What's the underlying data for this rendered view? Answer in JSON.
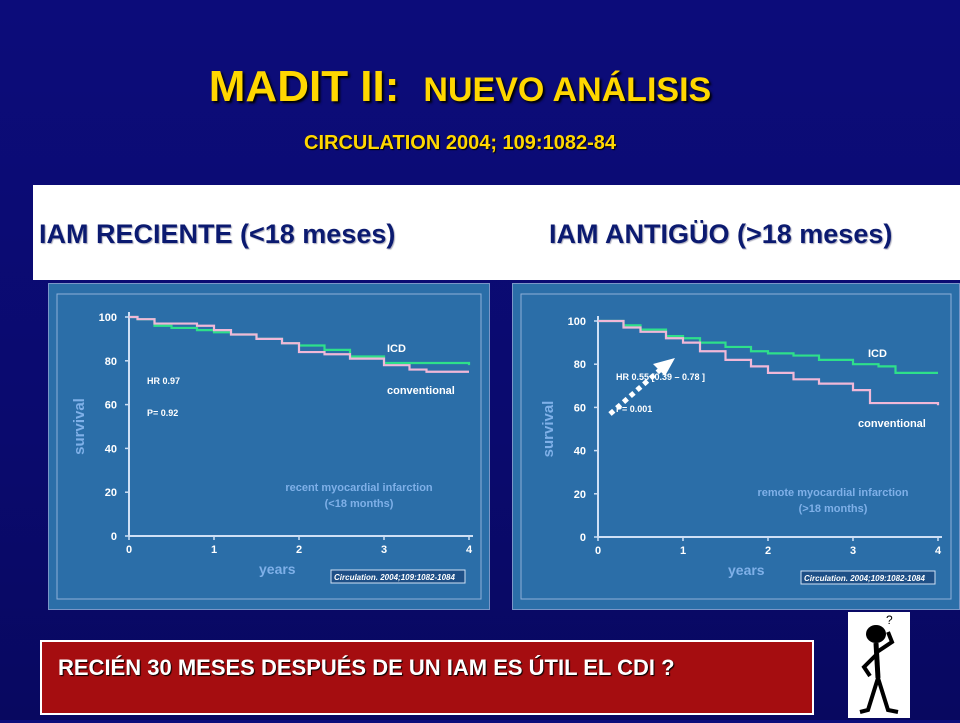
{
  "header": {
    "title_main": "MADIT II:",
    "title_sub": "NUEVO ANÁLISIS",
    "citation": "CIRCULATION 2004; 109:1082-84"
  },
  "band": {
    "left_label": "IAM RECIENTE (<18 meses)",
    "right_label": "IAM ANTIGÜO (>18 meses)"
  },
  "colors": {
    "icd": "#2ee08a",
    "conventional": "#f0b8d8",
    "plot_bg": "#2b6ea8",
    "label_blue": "#0b2ea0",
    "label_red": "#b01010"
  },
  "chart_data": [
    {
      "type": "line",
      "xlabel": "years",
      "ylabel": "survival",
      "xlim": [
        0,
        4
      ],
      "ylim": [
        0,
        100
      ],
      "x_ticks": [
        "0",
        "1",
        "2",
        "3",
        "4"
      ],
      "y_ticks": [
        "0",
        "20",
        "40",
        "60",
        "80",
        "100"
      ],
      "series": [
        {
          "name": "ICD",
          "x": [
            0,
            0.1,
            0.3,
            0.5,
            0.8,
            1.0,
            1.2,
            1.5,
            1.8,
            2.0,
            2.3,
            2.6,
            3.0,
            3.3,
            3.5,
            4.0
          ],
          "y": [
            100,
            99,
            96,
            95,
            94,
            93,
            92,
            90,
            88,
            87,
            85,
            82,
            79,
            79,
            79,
            78
          ]
        },
        {
          "name": "conventional",
          "x": [
            0,
            0.1,
            0.3,
            0.5,
            0.8,
            1.0,
            1.2,
            1.5,
            1.8,
            2.0,
            2.3,
            2.6,
            3.0,
            3.3,
            3.5,
            4.0
          ],
          "y": [
            100,
            99,
            97,
            97,
            96,
            94,
            92,
            90,
            88,
            84,
            83,
            81,
            78,
            76,
            75,
            75
          ]
        }
      ],
      "stats": [
        "HR 0.97",
        "P= 0.92"
      ],
      "annotation": [
        "recent myocardial infarction",
        "(<18 months)"
      ],
      "source": "Circulation. 2004;109:1082-1084"
    },
    {
      "type": "line",
      "xlabel": "years",
      "ylabel": "survival",
      "xlim": [
        0,
        4
      ],
      "ylim": [
        0,
        100
      ],
      "x_ticks": [
        "0",
        "1",
        "2",
        "3",
        "4"
      ],
      "y_ticks": [
        "0",
        "20",
        "40",
        "60",
        "80",
        "100"
      ],
      "series": [
        {
          "name": "ICD",
          "x": [
            0,
            0.1,
            0.3,
            0.5,
            0.8,
            1.0,
            1.2,
            1.5,
            1.8,
            2.0,
            2.3,
            2.6,
            3.0,
            3.3,
            3.5,
            4.0
          ],
          "y": [
            100,
            100,
            98,
            96,
            93,
            92,
            90,
            88,
            86,
            85,
            84,
            82,
            80,
            79,
            76,
            76
          ]
        },
        {
          "name": "conventional",
          "x": [
            0,
            0.1,
            0.3,
            0.5,
            0.8,
            1.0,
            1.2,
            1.5,
            1.8,
            2.0,
            2.3,
            2.6,
            3.0,
            3.2,
            3.5,
            4.0
          ],
          "y": [
            100,
            100,
            97,
            95,
            92,
            90,
            86,
            82,
            79,
            76,
            73,
            71,
            68,
            62,
            62,
            61
          ]
        }
      ],
      "stats": [
        "HR 0.55 [0.39 – 0.78 ]",
        "P= 0.001"
      ],
      "annotation": [
        "remote myocardial infarction",
        "(>18 months)"
      ],
      "source": "Circulation. 2004;109:1082-1084"
    }
  ],
  "note": {
    "text": "RECIÉN 30 MESES DESPUÉS DE UN IAM ES ÚTIL EL CDI ?"
  },
  "figure": {
    "question_mark": "?"
  }
}
